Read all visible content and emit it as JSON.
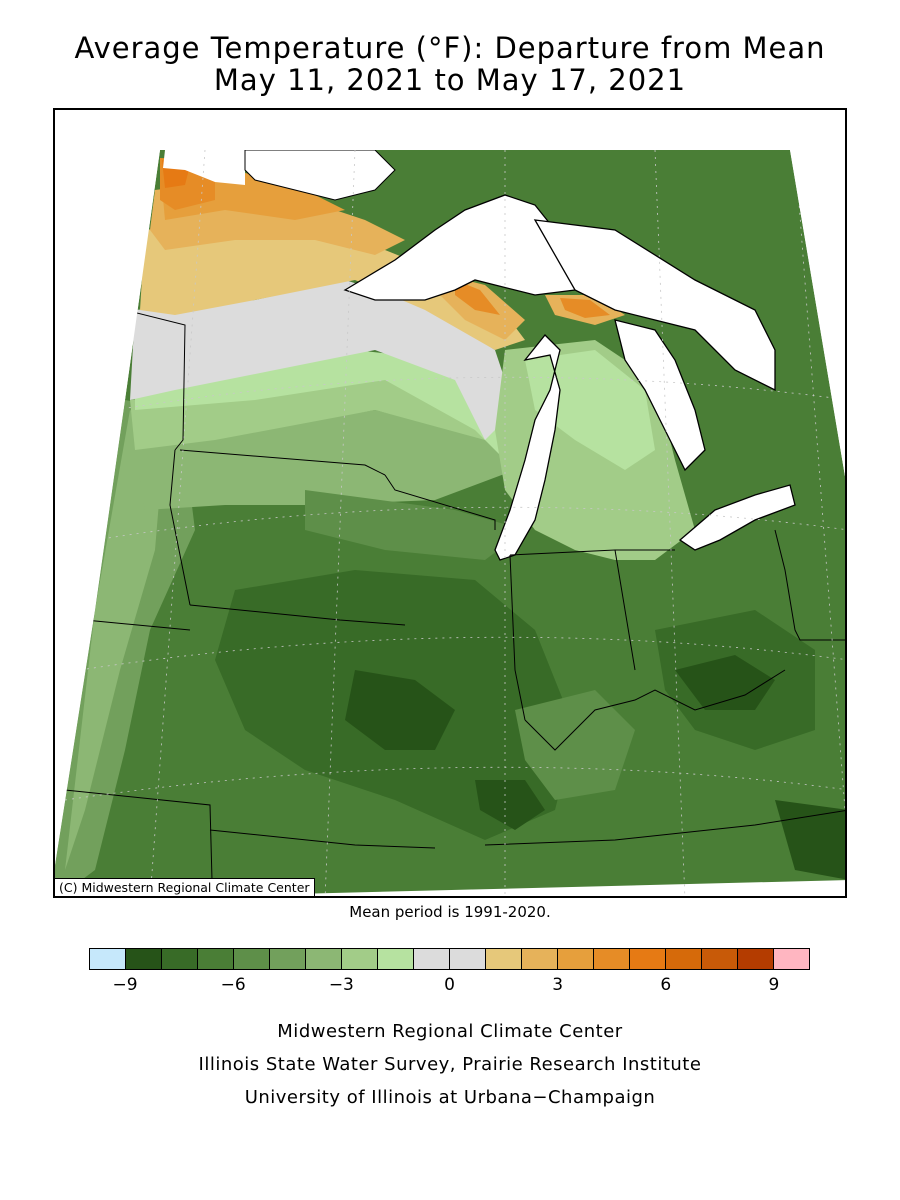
{
  "title_line1": "Average Temperature (°F): Departure from Mean",
  "title_line2": "May 11, 2021 to May 17, 2021",
  "copyright": "(C) Midwestern Regional Climate Center",
  "mean_period": "Mean period is 1991-2020.",
  "legend": {
    "colors": [
      "#c6e8fb",
      "#265318",
      "#386b27",
      "#4a7e36",
      "#5e8f49",
      "#72a05c",
      "#8cb774",
      "#a2cc88",
      "#b6e2a0",
      "#dcdcdc",
      "#dcdcdc",
      "#e6c87a",
      "#e6b25a",
      "#e69f3c",
      "#e68c26",
      "#e67a14",
      "#d66a0a",
      "#c85a08",
      "#b43c00",
      "#ffb6c1"
    ],
    "tick_labels": [
      "−9",
      "−6",
      "−3",
      "0",
      "3",
      "6",
      "9"
    ]
  },
  "credits": {
    "line1": "Midwestern Regional Climate Center",
    "line2": "Illinois State Water Survey, Prairie Research Institute",
    "line3": "University of Illinois at Urbana−Champaign"
  }
}
